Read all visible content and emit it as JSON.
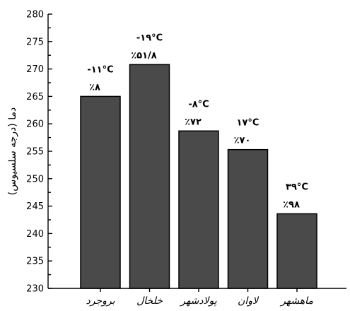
{
  "chart_data": {
    "type": "bar",
    "title": "",
    "xlabel": "",
    "ylabel": "دما (درجه سلسیوس)",
    "ylim": [
      230,
      280
    ],
    "yticks": [
      230,
      235,
      240,
      245,
      250,
      255,
      260,
      265,
      270,
      275,
      280
    ],
    "grid": false,
    "bar_color": "#4a4a4a",
    "categories": [
      "بروجرد",
      "خلخال",
      "پولادشهر",
      "لاوان",
      "ماهشهر"
    ],
    "values": [
      265,
      270.8,
      258.7,
      255.3,
      243.6
    ],
    "annotations": [
      {
        "temp": "-۱۱°C",
        "percent": "٪۸"
      },
      {
        "temp": "-۱۹°C",
        "percent": "٪۵۱/۸"
      },
      {
        "temp": "-۸°C",
        "percent": "٪۷۲"
      },
      {
        "temp": "۱۷°C",
        "percent": "٪۷۰"
      },
      {
        "temp": "۳۹°C",
        "percent": "٪۹۸"
      }
    ]
  }
}
